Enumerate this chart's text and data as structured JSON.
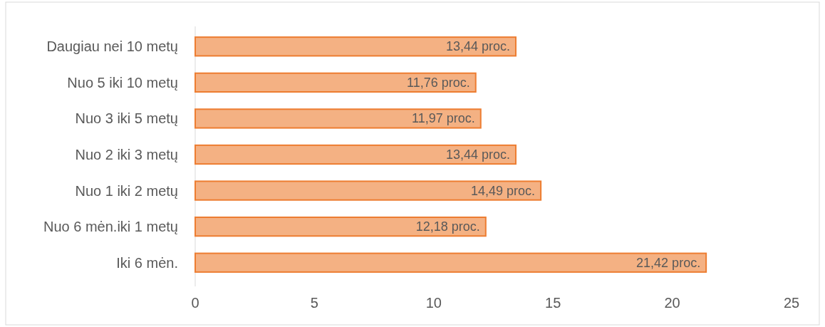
{
  "chart_data": {
    "type": "bar",
    "orientation": "horizontal",
    "categories": [
      "Daugiau nei 10 metų",
      "Nuo 5 iki 10 metų",
      "Nuo 3 iki 5 metų",
      "Nuo 2 iki 3 metų",
      "Nuo 1 iki 2 metų",
      "Nuo 6 mėn.iki 1 metų",
      "Iki 6 mėn."
    ],
    "values": [
      13.44,
      11.76,
      11.97,
      13.44,
      14.49,
      12.18,
      21.42
    ],
    "value_labels": [
      "13,44 proc.",
      "11,76 proc.",
      "11,97 proc.",
      "13,44 proc.",
      "14,49 proc.",
      "12,18 proc.",
      "21,42 proc."
    ],
    "color": "#f4b183",
    "xlim": [
      0,
      25
    ],
    "xticks": [
      0,
      5,
      10,
      15,
      20,
      25
    ],
    "grid": false
  }
}
